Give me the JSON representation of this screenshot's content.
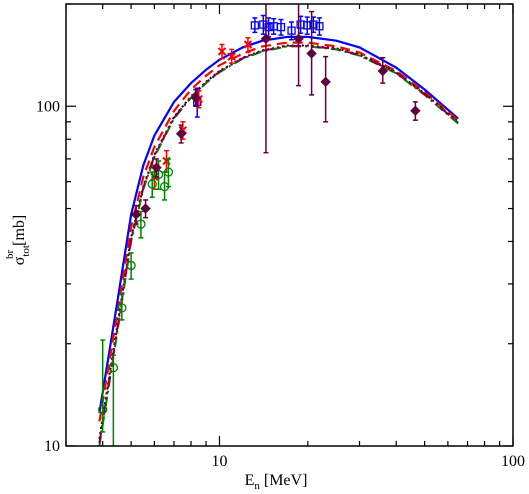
{
  "chart_data": {
    "type": "line",
    "xlabel": {
      "main": "E",
      "sub": "n",
      "rest": " [MeV]"
    },
    "ylabel": {
      "main": "σ",
      "sub": "tot",
      "sup": "br",
      "rest": " [mb]"
    },
    "xscale": "log",
    "yscale": "log",
    "xlim": [
      3,
      100
    ],
    "ylim": [
      10,
      200
    ],
    "xticks": [
      {
        "v": 10,
        "label": "10"
      },
      {
        "v": 100,
        "label": "100"
      }
    ],
    "yticks": [
      {
        "v": 10,
        "label": "10"
      },
      {
        "v": 100,
        "label": "100"
      }
    ],
    "curves": [
      {
        "color": "#0000ff",
        "dash": "",
        "width": 2.2,
        "x": [
          3.9,
          4.5,
          5.0,
          5.5,
          6.0,
          7.0,
          8.0,
          9.0,
          10.0,
          12.0,
          14.0,
          17.0,
          20.0,
          25.0,
          30.0,
          40.0,
          50.0,
          65.0
        ],
        "y": [
          12.5,
          27.0,
          48.0,
          67.0,
          82.0,
          103.0,
          117.0,
          128.0,
          137.0,
          149.0,
          156.0,
          160.0,
          160.0,
          156.0,
          149.0,
          130.0,
          112.0,
          92.0
        ]
      },
      {
        "color": "#ff0000",
        "dash": "10,6",
        "width": 2.2,
        "x": [
          3.9,
          4.5,
          5.0,
          5.5,
          6.0,
          7.0,
          8.0,
          9.0,
          10.0,
          12.0,
          14.0,
          17.0,
          20.0,
          25.0,
          30.0,
          40.0,
          50.0,
          65.0
        ],
        "y": [
          11.8,
          25.0,
          44.0,
          62.0,
          76.0,
          97.0,
          112.0,
          123.0,
          132.0,
          143.0,
          150.0,
          154.0,
          154.0,
          150.0,
          144.0,
          127.0,
          110.0,
          91.0
        ]
      },
      {
        "color": "#000000",
        "dash": "2,3",
        "width": 2.0,
        "x": [
          3.9,
          4.5,
          5.0,
          5.5,
          6.0,
          7.0,
          8.0,
          9.0,
          10.0,
          12.0,
          14.0,
          17.0,
          20.0,
          25.0,
          30.0,
          40.0,
          50.0,
          65.0
        ],
        "y": [
          10.5,
          23.0,
          41.0,
          58.0,
          72.0,
          93.0,
          107.0,
          118.0,
          127.0,
          139.0,
          146.0,
          151.0,
          151.0,
          148.0,
          142.0,
          126.0,
          109.0,
          90.0
        ]
      },
      {
        "color": "#008000",
        "dash": "10,4,2,4",
        "width": 2.0,
        "x": [
          3.9,
          4.5,
          5.0,
          5.5,
          6.0,
          7.0,
          8.0,
          9.0,
          10.0,
          12.0,
          14.0,
          17.0,
          20.0,
          25.0,
          30.0,
          40.0,
          50.0,
          65.0
        ],
        "y": [
          10.0,
          22.0,
          40.0,
          57.0,
          71.0,
          92.0,
          106.0,
          117.0,
          126.0,
          138.0,
          145.0,
          150.0,
          150.0,
          147.0,
          141.0,
          125.0,
          108.0,
          89.0
        ]
      },
      {
        "color": "#800040",
        "dash": "12,4,2,4,2,4",
        "width": 2.0,
        "x": [
          3.9,
          4.5,
          5.0,
          5.5,
          6.0,
          7.0,
          8.0,
          9.0,
          10.0,
          12.0,
          14.0,
          17.0,
          20.0,
          25.0,
          30.0,
          40.0,
          50.0,
          65.0
        ],
        "y": [
          10.2,
          22.5,
          40.5,
          57.5,
          71.5,
          92.5,
          106.5,
          117.5,
          126.5,
          138.5,
          145.5,
          150.5,
          150.5,
          147.5,
          141.5,
          125.5,
          108.5,
          89.5
        ]
      }
    ],
    "datasets": [
      {
        "marker": "square",
        "color": "#0000ff",
        "points": [
          {
            "x": 13.2,
            "y": 173,
            "lo": 165,
            "hi": 182
          },
          {
            "x": 14.1,
            "y": 174,
            "lo": 163,
            "hi": 185
          },
          {
            "x": 14.7,
            "y": 171,
            "lo": 160,
            "hi": 182
          },
          {
            "x": 15.3,
            "y": 172,
            "lo": 163,
            "hi": 181
          },
          {
            "x": 16.2,
            "y": 171,
            "lo": 162,
            "hi": 180
          },
          {
            "x": 17.6,
            "y": 167,
            "lo": 157,
            "hi": 177
          },
          {
            "x": 18.9,
            "y": 174,
            "lo": 164,
            "hi": 184
          },
          {
            "x": 19.9,
            "y": 173,
            "lo": 163,
            "hi": 183
          },
          {
            "x": 20.9,
            "y": 174,
            "lo": 165,
            "hi": 183
          },
          {
            "x": 21.9,
            "y": 172,
            "lo": 162,
            "hi": 182
          },
          {
            "x": 8.4,
            "y": 103,
            "lo": 93,
            "hi": 113
          }
        ]
      },
      {
        "marker": "cross",
        "color": "#ff0000",
        "points": [
          {
            "x": 6.0,
            "y": 62,
            "lo": 57,
            "hi": 67
          },
          {
            "x": 6.6,
            "y": 69,
            "lo": 64,
            "hi": 74
          },
          {
            "x": 7.5,
            "y": 85,
            "lo": 80,
            "hi": 90
          },
          {
            "x": 8.5,
            "y": 105,
            "lo": 99,
            "hi": 111
          },
          {
            "x": 10.2,
            "y": 145,
            "lo": 138,
            "hi": 152
          },
          {
            "x": 11.0,
            "y": 140,
            "lo": 134,
            "hi": 147
          },
          {
            "x": 12.5,
            "y": 152,
            "lo": 144,
            "hi": 159
          }
        ]
      },
      {
        "marker": "circle",
        "color": "#008000",
        "points": [
          {
            "x": 4.0,
            "y": 12.8,
            "lo": 11.0,
            "hi": 20.5
          },
          {
            "x": 4.35,
            "y": 17.0,
            "lo": 10.0,
            "hi": 18.5
          },
          {
            "x": 4.65,
            "y": 25.5,
            "lo": 23.5,
            "hi": 28.0
          },
          {
            "x": 5.0,
            "y": 34,
            "lo": 31,
            "hi": 37
          },
          {
            "x": 5.4,
            "y": 45,
            "lo": 41,
            "hi": 49
          },
          {
            "x": 5.9,
            "y": 59,
            "lo": 54,
            "hi": 64
          },
          {
            "x": 6.2,
            "y": 63,
            "lo": 57,
            "hi": 69
          },
          {
            "x": 6.5,
            "y": 58,
            "lo": 53,
            "hi": 64
          },
          {
            "x": 6.7,
            "y": 64,
            "lo": 58,
            "hi": 70
          }
        ]
      },
      {
        "marker": "diamond",
        "color": "#600040",
        "points": [
          {
            "x": 5.2,
            "y": 48,
            "lo": 45,
            "hi": 51
          },
          {
            "x": 5.6,
            "y": 50,
            "lo": 47,
            "hi": 53
          },
          {
            "x": 6.1,
            "y": 66,
            "lo": 62,
            "hi": 70
          },
          {
            "x": 7.4,
            "y": 83,
            "lo": 78,
            "hi": 88
          },
          {
            "x": 8.3,
            "y": 106,
            "lo": 100,
            "hi": 112
          },
          {
            "x": 14.4,
            "y": 158,
            "lo": 73,
            "hi": 230
          },
          {
            "x": 18.6,
            "y": 158,
            "lo": 115,
            "hi": 215
          },
          {
            "x": 20.6,
            "y": 143,
            "lo": 108,
            "hi": 190
          },
          {
            "x": 23.0,
            "y": 118,
            "lo": 90,
            "hi": 140
          },
          {
            "x": 36.0,
            "y": 127,
            "lo": 117,
            "hi": 139
          },
          {
            "x": 46.5,
            "y": 97,
            "lo": 91,
            "hi": 103
          }
        ]
      }
    ]
  }
}
